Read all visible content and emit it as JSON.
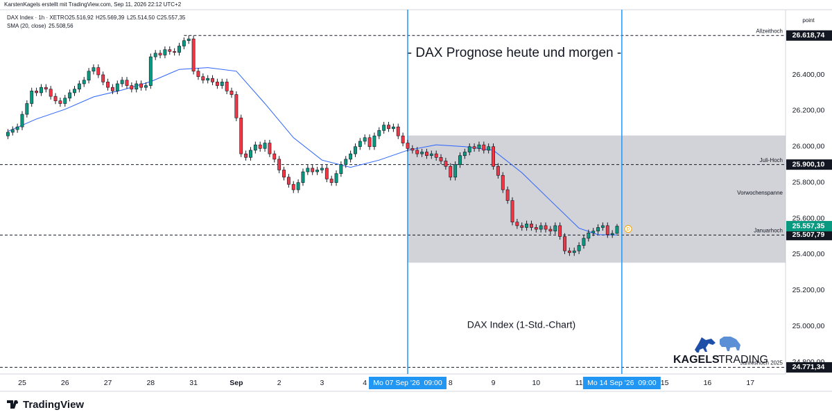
{
  "header": {
    "attribution": "KarstenKagels erstellt mit TradingView.com, Sep 11, 2026 22:12 UTC+2"
  },
  "logo": {
    "brand_bold": "KAGELS",
    "brand_light": "TRADING"
  },
  "footer": {
    "brand": "TradingView"
  },
  "chart_data": {
    "type": "candlestick",
    "title": "- DAX Prognose heute und morgen -",
    "subtitle": "DAX Index (1-Std.-Chart)",
    "symbol": "DAX Index · 1h · XETR",
    "ohlc_labels": [
      "O25.516,92",
      "H25.569,39",
      "L25.514,50",
      "C25.557,35"
    ],
    "up_color": "#089981",
    "down_color": "#f23645",
    "open": [
      26060,
      26080,
      26095,
      26110,
      26180,
      26240,
      26310,
      26300,
      26330,
      26320,
      26280,
      26255,
      26240,
      26270,
      26300,
      26320,
      26350,
      26370,
      26420,
      26440,
      26400,
      26360,
      26330,
      26310,
      26350,
      26370,
      26340,
      26320,
      26350,
      26330,
      26340,
      26500,
      26520,
      26510,
      26540,
      26530,
      26525,
      26560,
      26590,
      26600,
      26420,
      26390,
      26370,
      26380,
      26360,
      26340,
      26360,
      26310,
      26290,
      26160,
      25960,
      25940,
      25980,
      26010,
      25990,
      26020,
      25960,
      25930,
      25870,
      25830,
      25790,
      25760,
      25800,
      25860,
      25880,
      25860,
      25870,
      25880,
      25820,
      25800,
      25850,
      25900,
      25930,
      25960,
      26000,
      26030,
      26050,
      26000,
      26060,
      26090,
      26120,
      26100,
      26110,
      26060,
      26020,
      25990,
      25980,
      25960,
      25970,
      25950,
      25960,
      25940,
      25920,
      25890,
      25830,
      25900,
      25950,
      25970,
      26000,
      25990,
      26010,
      25980,
      26000,
      25890,
      25840,
      25760,
      25700,
      25580,
      25560,
      25550,
      25570,
      25550,
      25540,
      25560,
      25540,
      25530,
      25560,
      25500,
      25420,
      25410,
      25420,
      25450,
      25490,
      25520,
      25530,
      25550,
      25560,
      25510,
      25516.92
    ],
    "high": [
      26098,
      26113,
      26128,
      26198,
      26258,
      26328,
      26328,
      26348,
      26348,
      26338,
      26298,
      26273,
      26288,
      26318,
      26338,
      26368,
      26388,
      26438,
      26458,
      26458,
      26418,
      26378,
      26348,
      26368,
      26388,
      26388,
      26358,
      26368,
      26368,
      26358,
      26518,
      26538,
      26538,
      26558,
      26558,
      26548,
      26578,
      26608,
      26618.74,
      26618,
      26438,
      26408,
      26398,
      26398,
      26378,
      26378,
      26378,
      26328,
      26308,
      26178,
      25978,
      25998,
      26028,
      26028,
      26038,
      26038,
      25978,
      25948,
      25888,
      25848,
      25808,
      25818,
      25878,
      25898,
      25898,
      25888,
      25898,
      25898,
      25838,
      25868,
      25918,
      25948,
      25978,
      26018,
      26048,
      26068,
      26068,
      26078,
      26108,
      26138,
      26138,
      26128,
      26128,
      26078,
      26038,
      26008,
      25998,
      25988,
      25988,
      25978,
      25978,
      25958,
      25938,
      25908,
      25918,
      25968,
      25988,
      26018,
      26018,
      26028,
      26028,
      26018,
      26018,
      25908,
      25858,
      25778,
      25718,
      25598,
      25578,
      25588,
      25588,
      25568,
      25578,
      25578,
      25558,
      25578,
      25578,
      25518,
      25438,
      25438,
      25468,
      25508,
      25538,
      25548,
      25568,
      25578,
      25578,
      25535,
      25569.39
    ],
    "low": [
      26042,
      26062,
      26077,
      26092,
      26162,
      26222,
      26282,
      26282,
      26302,
      26262,
      26237,
      26222,
      26222,
      26252,
      26282,
      26302,
      26332,
      26352,
      26402,
      26382,
      26342,
      26312,
      26292,
      26292,
      26332,
      26322,
      26302,
      26302,
      26312,
      26312,
      26322,
      26482,
      26492,
      26492,
      26512,
      26507,
      26507,
      26542,
      26572,
      26402,
      26372,
      26352,
      26352,
      26342,
      26322,
      26322,
      26292,
      26272,
      26142,
      25942,
      25922,
      25922,
      25962,
      25972,
      25972,
      25942,
      25912,
      25852,
      25812,
      25772,
      25742,
      25742,
      25782,
      25842,
      25842,
      25842,
      25852,
      25802,
      25782,
      25782,
      25832,
      25882,
      25912,
      25942,
      25982,
      26012,
      25982,
      25982,
      26042,
      26072,
      26082,
      26082,
      26042,
      26002,
      25972,
      25962,
      25942,
      25942,
      25932,
      25932,
      25922,
      25902,
      25872,
      25812,
      25812,
      25882,
      25932,
      25952,
      25972,
      25972,
      25962,
      25962,
      25872,
      25822,
      25742,
      25682,
      25562,
      25542,
      25532,
      25532,
      25532,
      25522,
      25522,
      25522,
      25512,
      25512,
      25482,
      25402,
      25392,
      25392,
      25402,
      25432,
      25472,
      25502,
      25512,
      25532,
      25492,
      25492,
      25514.5
    ],
    "close": [
      26080,
      26095,
      26110,
      26180,
      26240,
      26310,
      26300,
      26330,
      26320,
      26280,
      26255,
      26240,
      26270,
      26300,
      26320,
      26350,
      26370,
      26420,
      26440,
      26400,
      26360,
      26330,
      26310,
      26350,
      26370,
      26340,
      26320,
      26350,
      26330,
      26340,
      26500,
      26520,
      26510,
      26540,
      26530,
      26525,
      26560,
      26590,
      26600,
      26420,
      26390,
      26370,
      26380,
      26360,
      26340,
      26360,
      26310,
      26290,
      26160,
      25960,
      25940,
      25980,
      26010,
      25990,
      26020,
      25960,
      25930,
      25870,
      25830,
      25790,
      25760,
      25800,
      25860,
      25880,
      25860,
      25870,
      25880,
      25820,
      25800,
      25850,
      25900,
      25930,
      25960,
      26000,
      26030,
      26050,
      26000,
      26060,
      26090,
      26120,
      26100,
      26110,
      26060,
      26020,
      25990,
      25980,
      25960,
      25970,
      25950,
      25960,
      25940,
      25920,
      25890,
      25830,
      25900,
      25950,
      25970,
      26000,
      25990,
      26010,
      25980,
      26000,
      25890,
      25840,
      25760,
      25700,
      25580,
      25560,
      25550,
      25570,
      25550,
      25540,
      25560,
      25540,
      25530,
      25560,
      25500,
      25420,
      25410,
      25420,
      25450,
      25490,
      25520,
      25530,
      25550,
      25560,
      25510,
      25516.92,
      25557.35
    ],
    "sma": {
      "name": "SMA (20, close)",
      "value_label": "25.508,56",
      "color": "#2962ff",
      "x": [
        0,
        6,
        12,
        18,
        24,
        30,
        36,
        42,
        48,
        54,
        60,
        66,
        72,
        78,
        84,
        90,
        96,
        102,
        108,
        114,
        120,
        124,
        128
      ],
      "values": [
        26085,
        26154,
        26208,
        26277,
        26315,
        26362,
        26430,
        26440,
        26420,
        26240,
        26050,
        25925,
        25885,
        25925,
        25980,
        26010,
        26000,
        25980,
        25855,
        25700,
        25546,
        25510,
        25508.56
      ]
    },
    "xlim": [
      -1.66,
      163.4
    ],
    "xticks": [
      {
        "value": 3,
        "label": "25"
      },
      {
        "value": 12,
        "label": "26"
      },
      {
        "value": 21,
        "label": "27"
      },
      {
        "value": 30,
        "label": "28"
      },
      {
        "value": 39,
        "label": "31"
      },
      {
        "value": 48,
        "label": "Sep"
      },
      {
        "value": 57,
        "label": "2"
      },
      {
        "value": 66,
        "label": "3"
      },
      {
        "value": 75,
        "label": "4"
      },
      {
        "value": 93,
        "label": "8"
      },
      {
        "value": 102,
        "label": "9"
      },
      {
        "value": 111,
        "label": "10"
      },
      {
        "value": 120,
        "label": "11"
      },
      {
        "value": 138,
        "label": "15"
      },
      {
        "value": 147,
        "label": "16"
      },
      {
        "value": 156,
        "label": "17"
      }
    ],
    "ylim": [
      24734.4,
      26762.4
    ],
    "yticks": [
      {
        "value": 24800,
        "label": "24.800,00"
      },
      {
        "value": 25000,
        "label": "25.000,00"
      },
      {
        "value": 25200,
        "label": "25.200,00"
      },
      {
        "value": 25400,
        "label": "25.400,00"
      },
      {
        "value": 25600,
        "label": "25.600,00"
      },
      {
        "value": 25800,
        "label": "25.800,00"
      },
      {
        "value": 26000,
        "label": "26.000,00"
      },
      {
        "value": 26200,
        "label": "26.200,00"
      },
      {
        "value": 26400,
        "label": "26.400,00"
      }
    ],
    "y_axis_unit": "point",
    "grid": false,
    "levels": [
      {
        "value": 26618.74,
        "label": "26.618,74",
        "name": "Allzeithoch",
        "x_start": 37
      },
      {
        "value": 25900.1,
        "label": "25.900,10",
        "name": "Juli-Hoch"
      },
      {
        "value": 25507.79,
        "label": "25.507,79",
        "name": "Januarhoch"
      },
      {
        "value": 24771.34,
        "label": "24.771,34",
        "name": "Jahreshoch 2025"
      }
    ],
    "last_price": {
      "value": 25557.35,
      "label": "25.557,35",
      "color": "#089981"
    },
    "range_box": {
      "name": "Vorwochenspanne",
      "x_start": 84,
      "top": 26062,
      "bottom": 25354
    },
    "time_markers": [
      {
        "value": 84,
        "label": "Mo 07 Sep '26  09:00"
      },
      {
        "value": 129,
        "label": "Mo 14 Sep '26  09:00"
      }
    ],
    "event_marker": {
      "label": "D"
    }
  }
}
